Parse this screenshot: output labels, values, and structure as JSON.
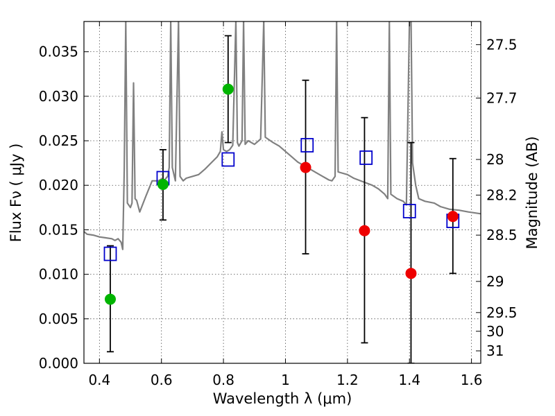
{
  "chart_data": {
    "type": "scatter",
    "xlabel": "Wavelength  λ (μm)",
    "ylabel": "Flux  Fν  ( μJy )",
    "ylabel_right": "Magnitude (AB)",
    "xlim": [
      0.35,
      1.63
    ],
    "ylim": [
      0.0,
      0.0384
    ],
    "grid": true,
    "xticks": [
      0.4,
      0.6,
      0.8,
      1.0,
      1.2,
      1.4,
      1.6
    ],
    "xtick_labels": [
      "0.4",
      "0.6",
      "0.8",
      "1",
      "1.2",
      "1.4",
      "1.6"
    ],
    "yticks": [
      0.0,
      0.005,
      0.01,
      0.015,
      0.02,
      0.025,
      0.03,
      0.035
    ],
    "ytick_labels": [
      "0.000",
      "0.005",
      "0.010",
      "0.015",
      "0.020",
      "0.025",
      "0.030",
      "0.035"
    ],
    "right_ticks": [
      {
        "label": "27.5",
        "flux": 0.0358
      },
      {
        "label": "27.7",
        "flux": 0.0298
      },
      {
        "label": "28",
        "flux": 0.0229
      },
      {
        "label": "28.2",
        "flux": 0.0189
      },
      {
        "label": "28.5",
        "flux": 0.0144
      },
      {
        "label": "29",
        "flux": 0.0092
      },
      {
        "label": "29.5",
        "flux": 0.0057
      },
      {
        "label": "30",
        "flux": 0.0036
      },
      {
        "label": "31",
        "flux": 0.0014
      }
    ],
    "colors": {
      "spectrum": "#808080",
      "green": "#00b400",
      "red": "#ee0000",
      "model": "#0000cc",
      "errorbar": "#000000"
    },
    "series": [
      {
        "type": "line",
        "color": "#808080",
        "points": [
          [
            0.35,
            0.0148
          ],
          [
            0.36,
            0.0145
          ],
          [
            0.38,
            0.0144
          ],
          [
            0.4,
            0.0142
          ],
          [
            0.42,
            0.0141
          ],
          [
            0.44,
            0.014
          ],
          [
            0.45,
            0.0138
          ],
          [
            0.46,
            0.014
          ],
          [
            0.47,
            0.0136
          ],
          [
            0.475,
            0.0128
          ],
          [
            0.48,
            0.0218
          ],
          [
            0.485,
            0.0385
          ],
          [
            0.49,
            0.018
          ],
          [
            0.5,
            0.0175
          ],
          [
            0.505,
            0.018
          ],
          [
            0.51,
            0.0315
          ],
          [
            0.515,
            0.0185
          ],
          [
            0.52,
            0.0183
          ],
          [
            0.53,
            0.017
          ],
          [
            0.55,
            0.0188
          ],
          [
            0.57,
            0.0205
          ],
          [
            0.59,
            0.0205
          ],
          [
            0.6,
            0.0207
          ],
          [
            0.61,
            0.0206
          ],
          [
            0.62,
            0.021
          ],
          [
            0.625,
            0.022
          ],
          [
            0.63,
            0.0385
          ],
          [
            0.635,
            0.022
          ],
          [
            0.645,
            0.0205
          ],
          [
            0.655,
            0.0385
          ],
          [
            0.66,
            0.021
          ],
          [
            0.67,
            0.0205
          ],
          [
            0.68,
            0.0208
          ],
          [
            0.7,
            0.021
          ],
          [
            0.72,
            0.0212
          ],
          [
            0.74,
            0.0218
          ],
          [
            0.76,
            0.0225
          ],
          [
            0.78,
            0.0232
          ],
          [
            0.79,
            0.0238
          ],
          [
            0.795,
            0.026
          ],
          [
            0.8,
            0.024
          ],
          [
            0.81,
            0.0238
          ],
          [
            0.82,
            0.024
          ],
          [
            0.83,
            0.0245
          ],
          [
            0.84,
            0.0385
          ],
          [
            0.845,
            0.0248
          ],
          [
            0.85,
            0.0244
          ],
          [
            0.86,
            0.025
          ],
          [
            0.865,
            0.0385
          ],
          [
            0.87,
            0.0246
          ],
          [
            0.88,
            0.025
          ],
          [
            0.9,
            0.0246
          ],
          [
            0.92,
            0.0252
          ],
          [
            0.93,
            0.0385
          ],
          [
            0.935,
            0.0254
          ],
          [
            0.96,
            0.0248
          ],
          [
            0.98,
            0.0244
          ],
          [
            1.0,
            0.0238
          ],
          [
            1.02,
            0.0232
          ],
          [
            1.04,
            0.0226
          ],
          [
            1.06,
            0.0222
          ],
          [
            1.08,
            0.0218
          ],
          [
            1.1,
            0.0214
          ],
          [
            1.12,
            0.021
          ],
          [
            1.14,
            0.0206
          ],
          [
            1.15,
            0.0205
          ],
          [
            1.16,
            0.021
          ],
          [
            1.165,
            0.0385
          ],
          [
            1.17,
            0.0215
          ],
          [
            1.2,
            0.0212
          ],
          [
            1.22,
            0.0208
          ],
          [
            1.25,
            0.0204
          ],
          [
            1.28,
            0.02
          ],
          [
            1.3,
            0.0196
          ],
          [
            1.32,
            0.019
          ],
          [
            1.33,
            0.0185
          ],
          [
            1.335,
            0.0385
          ],
          [
            1.34,
            0.019
          ],
          [
            1.36,
            0.0185
          ],
          [
            1.38,
            0.0182
          ],
          [
            1.39,
            0.0178
          ],
          [
            1.4,
            0.0385
          ],
          [
            1.405,
            0.0385
          ],
          [
            1.41,
            0.0225
          ],
          [
            1.42,
            0.02
          ],
          [
            1.43,
            0.0185
          ],
          [
            1.45,
            0.0182
          ],
          [
            1.48,
            0.018
          ],
          [
            1.5,
            0.0176
          ],
          [
            1.53,
            0.0173
          ],
          [
            1.56,
            0.0172
          ],
          [
            1.59,
            0.017
          ],
          [
            1.63,
            0.0168
          ]
        ]
      },
      {
        "type": "marker",
        "shape": "circle",
        "color": "#00b400",
        "points": [
          {
            "x": 0.435,
            "y": 0.0072,
            "err_low": 0.0013,
            "err_high": 0.0132
          },
          {
            "x": 0.605,
            "y": 0.0201,
            "err_low": 0.0161,
            "err_high": 0.024
          },
          {
            "x": 0.815,
            "y": 0.0308,
            "err_low": 0.0248,
            "err_high": 0.0368
          }
        ]
      },
      {
        "type": "marker",
        "shape": "circle",
        "color": "#ee0000",
        "points": [
          {
            "x": 1.065,
            "y": 0.022,
            "err_low": 0.0123,
            "err_high": 0.0318
          },
          {
            "x": 1.255,
            "y": 0.0149,
            "err_low": 0.0023,
            "err_high": 0.0276
          },
          {
            "x": 1.405,
            "y": 0.0101,
            "err_low": 0.0,
            "err_high": 0.0248
          },
          {
            "x": 1.54,
            "y": 0.0165,
            "err_low": 0.0101,
            "err_high": 0.023
          }
        ]
      },
      {
        "type": "marker",
        "shape": "open-square",
        "color": "#0000cc",
        "points": [
          {
            "x": 0.435,
            "y": 0.0123
          },
          {
            "x": 0.605,
            "y": 0.0208
          },
          {
            "x": 0.815,
            "y": 0.0229
          },
          {
            "x": 1.07,
            "y": 0.0245
          },
          {
            "x": 1.26,
            "y": 0.0231
          },
          {
            "x": 1.4,
            "y": 0.0171
          },
          {
            "x": 1.54,
            "y": 0.016
          }
        ]
      }
    ]
  }
}
